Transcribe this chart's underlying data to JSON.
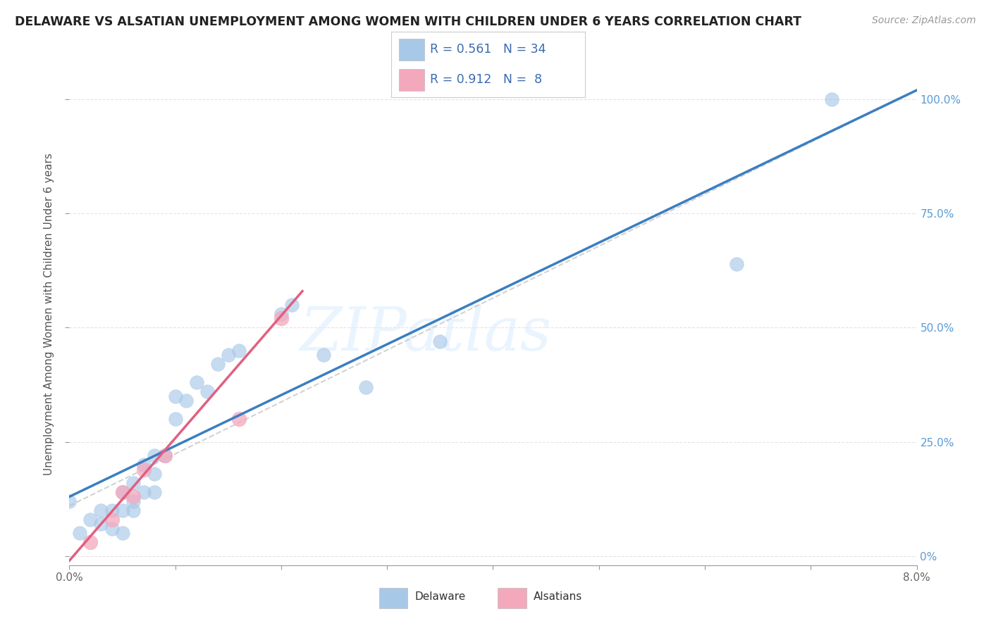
{
  "title": "DELAWARE VS ALSATIAN UNEMPLOYMENT AMONG WOMEN WITH CHILDREN UNDER 6 YEARS CORRELATION CHART",
  "source": "Source: ZipAtlas.com",
  "ylabel": "Unemployment Among Women with Children Under 6 years",
  "watermark": "ZIPatlas",
  "legend_label1": "Delaware",
  "legend_label2": "Alsatians",
  "R1": 0.561,
  "N1": 34,
  "R2": 0.912,
  "N2": 8,
  "blue_scatter": "#A8C8E8",
  "pink_scatter": "#F4A8BC",
  "line_blue": "#3B7EC0",
  "line_pink": "#E06080",
  "line_gray": "#C0C0C0",
  "title_color": "#222222",
  "legend_text_color": "#3B6BB0",
  "axis_text_color": "#5A9BD5",
  "tick_text_color": "#666666",
  "bg_color": "#FFFFFF",
  "grid_color": "#DDDDDD",
  "xlim": [
    0.0,
    0.08
  ],
  "ylim": [
    -0.02,
    1.08
  ],
  "xtick_vals": [
    0.0,
    0.01,
    0.02,
    0.03,
    0.04,
    0.05,
    0.06,
    0.07,
    0.08
  ],
  "ytick_vals": [
    0.0,
    0.25,
    0.5,
    0.75,
    1.0
  ],
  "ytick_labels": [
    "0%",
    "25.0%",
    "50.0%",
    "75.0%",
    "100.0%"
  ],
  "delaware_x": [
    0.0,
    0.001,
    0.002,
    0.003,
    0.003,
    0.004,
    0.004,
    0.005,
    0.005,
    0.005,
    0.006,
    0.006,
    0.006,
    0.007,
    0.007,
    0.008,
    0.008,
    0.008,
    0.009,
    0.01,
    0.01,
    0.011,
    0.012,
    0.013,
    0.014,
    0.015,
    0.016,
    0.02,
    0.021,
    0.024,
    0.028,
    0.035,
    0.063,
    0.072
  ],
  "delaware_y": [
    0.12,
    0.05,
    0.08,
    0.07,
    0.1,
    0.06,
    0.1,
    0.05,
    0.1,
    0.14,
    0.1,
    0.12,
    0.16,
    0.14,
    0.2,
    0.14,
    0.18,
    0.22,
    0.22,
    0.3,
    0.35,
    0.34,
    0.38,
    0.36,
    0.42,
    0.44,
    0.45,
    0.53,
    0.55,
    0.44,
    0.37,
    0.47,
    0.64,
    1.0
  ],
  "alsatian_x": [
    0.002,
    0.004,
    0.005,
    0.006,
    0.007,
    0.009,
    0.016,
    0.02
  ],
  "alsatian_y": [
    0.03,
    0.08,
    0.14,
    0.13,
    0.19,
    0.22,
    0.3,
    0.52
  ],
  "blue_line_x0": 0.0,
  "blue_line_x1": 0.08,
  "blue_line_y0": 0.13,
  "blue_line_y1": 1.02,
  "pink_line_x0": 0.0,
  "pink_line_x1": 0.022,
  "pink_line_y0": -0.01,
  "pink_line_y1": 0.58,
  "gray_line_x0": 0.0,
  "gray_line_x1": 0.08,
  "gray_line_y0": 0.13,
  "gray_line_y1": 1.02
}
